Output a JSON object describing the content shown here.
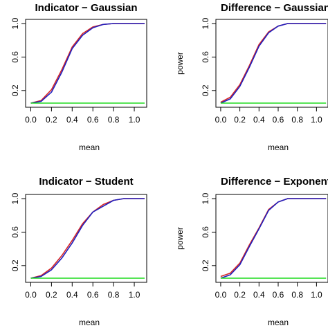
{
  "colors": {
    "red": "#d62728",
    "blue": "#1f1fbf",
    "green": "#1fdc1f",
    "frame": "#000000"
  },
  "chart_data": [
    {
      "type": "line",
      "title": "Indicator − Gaussian",
      "xlabel": "mean",
      "ylabel": "",
      "xlim": [
        -0.05,
        1.12
      ],
      "ylim": [
        0.0,
        1.05
      ],
      "xticks": [
        "0.0",
        "0.2",
        "0.4",
        "0.6",
        "0.8",
        "1.0"
      ],
      "yticks": [
        "0.2",
        "0.6",
        "1.0"
      ],
      "x": [
        0.0,
        0.1,
        0.2,
        0.3,
        0.4,
        0.5,
        0.6,
        0.7,
        0.8,
        0.9,
        1.0,
        1.1
      ],
      "series": [
        {
          "color": "red",
          "values": [
            0.05,
            0.08,
            0.21,
            0.45,
            0.72,
            0.88,
            0.96,
            0.99,
            1.0,
            1.0,
            1.0,
            1.0
          ]
        },
        {
          "color": "blue",
          "values": [
            0.05,
            0.07,
            0.18,
            0.42,
            0.7,
            0.86,
            0.95,
            0.99,
            1.0,
            1.0,
            1.0,
            1.0
          ]
        },
        {
          "color": "green",
          "values": [
            0.05,
            0.05,
            0.05,
            0.05,
            0.05,
            0.05,
            0.05,
            0.05,
            0.05,
            0.05,
            0.05,
            0.05
          ]
        }
      ]
    },
    {
      "type": "line",
      "title": "Difference − Gaussian",
      "xlabel": "mean",
      "ylabel": "power",
      "xlim": [
        -0.05,
        1.12
      ],
      "ylim": [
        0.0,
        1.05
      ],
      "xticks": [
        "0.0",
        "0.2",
        "0.4",
        "0.6",
        "0.8",
        "1.0"
      ],
      "yticks": [
        "0.2",
        "0.6",
        "1.0"
      ],
      "x": [
        0.0,
        0.1,
        0.2,
        0.3,
        0.4,
        0.5,
        0.6,
        0.7,
        0.8,
        0.9,
        1.0,
        1.1
      ],
      "series": [
        {
          "color": "red",
          "values": [
            0.06,
            0.12,
            0.27,
            0.5,
            0.75,
            0.9,
            0.97,
            1.0,
            1.0,
            1.0,
            1.0,
            1.0
          ]
        },
        {
          "color": "blue",
          "values": [
            0.05,
            0.1,
            0.25,
            0.48,
            0.73,
            0.89,
            0.97,
            1.0,
            1.0,
            1.0,
            1.0,
            1.0
          ]
        },
        {
          "color": "green",
          "values": [
            0.05,
            0.05,
            0.05,
            0.05,
            0.05,
            0.05,
            0.05,
            0.05,
            0.05,
            0.05,
            0.05,
            0.05
          ]
        }
      ]
    },
    {
      "type": "line",
      "title": "Indicator − Student",
      "xlabel": "mean",
      "ylabel": "",
      "xlim": [
        -0.05,
        1.12
      ],
      "ylim": [
        0.0,
        1.05
      ],
      "xticks": [
        "0.0",
        "0.2",
        "0.4",
        "0.6",
        "0.8",
        "1.0"
      ],
      "yticks": [
        "0.2",
        "0.6",
        "1.0"
      ],
      "x": [
        0.0,
        0.1,
        0.2,
        0.3,
        0.4,
        0.5,
        0.6,
        0.7,
        0.8,
        0.9,
        1.0,
        1.1
      ],
      "series": [
        {
          "color": "red",
          "values": [
            0.05,
            0.08,
            0.17,
            0.32,
            0.5,
            0.7,
            0.84,
            0.93,
            0.98,
            1.0,
            1.0,
            1.0
          ]
        },
        {
          "color": "blue",
          "values": [
            0.05,
            0.07,
            0.15,
            0.29,
            0.47,
            0.68,
            0.84,
            0.91,
            0.98,
            1.0,
            1.0,
            1.0
          ]
        },
        {
          "color": "green",
          "values": [
            0.05,
            0.05,
            0.05,
            0.05,
            0.05,
            0.05,
            0.05,
            0.05,
            0.05,
            0.05,
            0.05,
            0.05
          ]
        }
      ]
    },
    {
      "type": "line",
      "title": "Difference − Exponent",
      "xlabel": "mean",
      "ylabel": "power",
      "xlim": [
        -0.05,
        1.12
      ],
      "ylim": [
        0.0,
        1.05
      ],
      "xticks": [
        "0.0",
        "0.2",
        "0.4",
        "0.6",
        "0.8",
        "1.0"
      ],
      "yticks": [
        "0.2",
        "0.6",
        "1.0"
      ],
      "x": [
        0.0,
        0.1,
        0.2,
        0.3,
        0.4,
        0.5,
        0.6,
        0.7,
        0.8,
        0.9,
        1.0,
        1.1
      ],
      "series": [
        {
          "color": "red",
          "values": [
            0.07,
            0.11,
            0.23,
            0.45,
            0.65,
            0.87,
            0.96,
            1.0,
            1.0,
            1.0,
            1.0,
            1.0
          ]
        },
        {
          "color": "blue",
          "values": [
            0.05,
            0.09,
            0.21,
            0.43,
            0.64,
            0.86,
            0.96,
            1.0,
            1.0,
            1.0,
            1.0,
            1.0
          ]
        },
        {
          "color": "green",
          "values": [
            0.05,
            0.05,
            0.05,
            0.05,
            0.05,
            0.05,
            0.05,
            0.05,
            0.05,
            0.05,
            0.05,
            0.05
          ]
        }
      ]
    }
  ]
}
